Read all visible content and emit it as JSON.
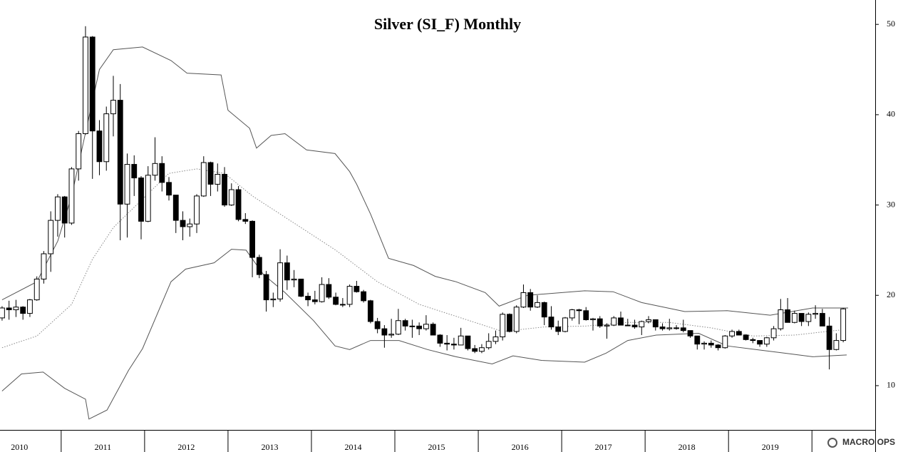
{
  "chart_data": {
    "type": "candlestick",
    "title": "Silver (SI_F) Monthly",
    "watermark": "MACRO OPS",
    "xlim": [
      -0.3,
      125.6
    ],
    "xticks": [
      8.5,
      20.5,
      32.5,
      44.5,
      56.5,
      68.5,
      80.5,
      92.5,
      104.5,
      116.5
    ],
    "year_labels": [
      {
        "value": 2.5,
        "label": "2010"
      },
      {
        "value": 14.5,
        "label": "2011"
      },
      {
        "value": 26.5,
        "label": "2012"
      },
      {
        "value": 38.5,
        "label": "2013"
      },
      {
        "value": 50.5,
        "label": "2014"
      },
      {
        "value": 62.5,
        "label": "2015"
      },
      {
        "value": 74.5,
        "label": "2016"
      },
      {
        "value": 86.5,
        "label": "2017"
      },
      {
        "value": 98.5,
        "label": "2018"
      },
      {
        "value": 110.5,
        "label": "2019"
      }
    ],
    "ylim": [
      5.1,
      52.7
    ],
    "yticks": [
      10,
      20,
      30,
      40,
      50
    ],
    "up_color": "#ffffff",
    "down_color": "#000000",
    "open": [
      17.5,
      18.6,
      18.4,
      18.7,
      18.0,
      19.5,
      21.8,
      24.6,
      28.3,
      30.9,
      28.0,
      34.0,
      37.9,
      48.6,
      38.2,
      34.8,
      40.1,
      41.6,
      30.1,
      34.5,
      33.0,
      28.2,
      33.3,
      34.6,
      32.5,
      31.1,
      28.3,
      27.6,
      27.9,
      31.0,
      34.7,
      32.3,
      33.4,
      30.0,
      31.7,
      28.4,
      28.2,
      24.2,
      22.3,
      19.5,
      19.6,
      23.6,
      21.7,
      21.8,
      19.9,
      19.5,
      19.3,
      21.2,
      19.8,
      19.0,
      19.0,
      21.0,
      20.4,
      19.4,
      17.1,
      16.3,
      15.6,
      15.7,
      17.2,
      16.6,
      16.6,
      16.3,
      16.8,
      15.6,
      14.7,
      14.6,
      14.5,
      15.5,
      14.1,
      13.8,
      14.2,
      14.9,
      15.4,
      17.9,
      16.0,
      18.7,
      20.3,
      18.7,
      19.2,
      17.6,
      16.5,
      16.0,
      17.5,
      18.4,
      18.3,
      17.3,
      17.4,
      16.6,
      16.7,
      17.5,
      16.7,
      16.7,
      16.5,
      17.1,
      17.3,
      16.5,
      16.3,
      16.4,
      16.4,
      16.1,
      15.5,
      14.6,
      14.7,
      14.5,
      14.2,
      15.5,
      16.0,
      15.6,
      15.1,
      15.0,
      14.6,
      15.3,
      16.3,
      18.4,
      17.0,
      18.0,
      17.1,
      17.9,
      18.0,
      16.6,
      14.0,
      15.0
    ],
    "high": [
      18.8,
      19.4,
      19.5,
      18.8,
      19.6,
      22.1,
      24.9,
      29.3,
      31.2,
      31.0,
      34.2,
      38.2,
      49.8,
      48.7,
      39.4,
      40.9,
      44.3,
      43.4,
      35.7,
      35.5,
      33.2,
      34.3,
      37.5,
      35.4,
      33.1,
      31.1,
      29.3,
      28.5,
      31.2,
      35.4,
      34.8,
      34.6,
      34.2,
      32.4,
      32.1,
      29.1,
      28.3,
      24.5,
      22.7,
      20.3,
      25.1,
      24.4,
      22.8,
      21.8,
      20.3,
      20.5,
      22.0,
      21.9,
      20.3,
      19.7,
      21.2,
      21.6,
      20.6,
      19.5,
      17.5,
      16.7,
      17.4,
      18.5,
      17.4,
      17.3,
      17.0,
      17.8,
      17.0,
      15.7,
      15.6,
      15.3,
      16.4,
      15.5,
      14.5,
      14.6,
      15.8,
      16.1,
      18.1,
      18.0,
      18.9,
      21.2,
      20.7,
      20.0,
      19.3,
      18.8,
      17.2,
      17.6,
      18.5,
      18.5,
      18.7,
      17.5,
      17.7,
      16.9,
      17.7,
      18.2,
      17.4,
      17.3,
      17.2,
      17.7,
      17.3,
      16.9,
      17.4,
      16.7,
      17.3,
      16.1,
      15.5,
      14.9,
      15.0,
      14.6,
      15.6,
      16.2,
      16.2,
      15.7,
      15.3,
      15.0,
      15.4,
      16.6,
      19.6,
      19.7,
      18.3,
      18.0,
      18.1,
      18.9,
      18.5,
      17.6,
      15.8,
      18.6
    ],
    "low": [
      17.2,
      17.3,
      17.6,
      17.3,
      17.6,
      19.4,
      21.3,
      22.6,
      26.5,
      26.4,
      27.8,
      32.7,
      37.8,
      32.9,
      33.3,
      33.8,
      37.6,
      26.1,
      26.4,
      31.0,
      26.2,
      28.1,
      32.7,
      31.5,
      30.5,
      26.9,
      26.1,
      26.5,
      26.9,
      30.9,
      31.0,
      31.5,
      29.8,
      29.9,
      28.2,
      27.9,
      22.0,
      21.9,
      18.2,
      18.7,
      19.3,
      20.6,
      20.9,
      19.8,
      18.8,
      19.0,
      19.2,
      19.6,
      18.9,
      18.7,
      18.7,
      20.3,
      19.2,
      16.9,
      15.8,
      14.2,
      15.3,
      15.6,
      16.1,
      15.3,
      15.6,
      16.1,
      15.6,
      14.3,
      13.9,
      14.0,
      14.5,
      13.9,
      13.6,
      13.6,
      14.0,
      14.6,
      15.0,
      15.9,
      15.8,
      18.6,
      18.3,
      18.6,
      16.7,
      16.2,
      15.6,
      15.9,
      17.2,
      16.8,
      17.2,
      16.1,
      16.4,
      15.2,
      16.6,
      16.7,
      16.6,
      16.3,
      15.6,
      16.9,
      16.1,
      16.1,
      16.1,
      16.2,
      15.9,
      15.3,
      14.0,
      14.0,
      14.2,
      13.9,
      14.1,
      15.3,
      15.6,
      15.0,
      14.7,
      14.3,
      14.3,
      15.0,
      16.1,
      17.0,
      16.9,
      16.6,
      16.6,
      17.4,
      16.6,
      11.8,
      13.9,
      14.8
    ],
    "close": [
      18.6,
      18.4,
      18.7,
      18.0,
      19.5,
      21.8,
      24.6,
      28.3,
      30.9,
      28.0,
      34.0,
      37.9,
      48.6,
      38.2,
      34.8,
      40.1,
      41.6,
      30.1,
      34.5,
      33.0,
      28.2,
      33.3,
      34.6,
      32.5,
      31.1,
      28.3,
      27.6,
      27.9,
      31.0,
      34.7,
      32.3,
      33.4,
      30.0,
      31.7,
      28.4,
      28.2,
      24.2,
      22.3,
      19.5,
      19.6,
      23.6,
      21.7,
      21.8,
      19.9,
      19.5,
      19.3,
      21.2,
      19.8,
      19.0,
      19.0,
      21.0,
      20.4,
      19.4,
      17.1,
      16.3,
      15.6,
      15.7,
      17.2,
      16.6,
      16.6,
      16.3,
      16.8,
      15.6,
      14.7,
      14.6,
      14.5,
      15.5,
      14.1,
      13.8,
      14.2,
      14.9,
      15.4,
      17.9,
      16.0,
      18.7,
      20.3,
      18.7,
      19.2,
      17.6,
      16.5,
      16.0,
      17.5,
      18.4,
      18.3,
      17.3,
      17.4,
      16.6,
      16.7,
      17.5,
      16.7,
      16.7,
      16.5,
      17.1,
      17.3,
      16.5,
      16.3,
      16.4,
      16.4,
      16.1,
      15.5,
      14.6,
      14.7,
      14.5,
      14.2,
      15.5,
      16.0,
      15.6,
      15.1,
      15.0,
      14.6,
      15.3,
      16.3,
      18.4,
      17.0,
      18.0,
      17.1,
      17.9,
      18.0,
      16.6,
      14.0,
      15.0,
      18.5
    ],
    "bands": [
      {
        "color": "#555555",
        "line_style": "solid",
        "x": [
          0,
          5,
          8,
          10,
          12,
          14,
          16,
          20.2,
          24.3,
          26.6,
          31.5,
          32.5,
          35.6,
          36.6,
          38.7,
          40.7,
          43.8,
          47.9,
          50,
          51,
          53,
          55.6,
          59.2,
          62.3,
          65.3,
          69.5,
          71.5,
          75.6,
          83.8,
          87.9,
          92,
          98.2,
          104.3,
          110.5,
          116.6,
          121.7
        ],
        "values": [
          19.5,
          21.5,
          26,
          31,
          38,
          45,
          47.2,
          47.5,
          46,
          44.6,
          44.4,
          40.5,
          38.5,
          36.3,
          37.7,
          37.9,
          36.1,
          35.7,
          33.7,
          32.3,
          29,
          24.1,
          23.3,
          22.1,
          21.5,
          20.3,
          18.8,
          20,
          20.5,
          20.4,
          19.2,
          18.2,
          18.3,
          17.8,
          18.6,
          18.6
        ]
      },
      {
        "color": "#888888",
        "line_style": "dotted",
        "x": [
          0,
          5,
          10,
          13,
          16,
          20,
          24,
          28,
          32,
          36,
          42,
          48,
          54,
          60,
          66,
          72,
          78,
          84,
          90,
          96,
          102,
          108,
          114,
          121
        ],
        "values": [
          14.2,
          15.5,
          19,
          24,
          27.5,
          30.5,
          33.5,
          34,
          33.5,
          31,
          28,
          25,
          21.5,
          19,
          17.5,
          16,
          16.5,
          16.6,
          17,
          17,
          16.4,
          15.5,
          15.6,
          16.2
        ]
      },
      {
        "color": "#555555",
        "line_style": "solid",
        "x": [
          0,
          2.8,
          5.9,
          9,
          12,
          12.5,
          15.1,
          18.2,
          20.2,
          24.3,
          26.4,
          30.5,
          33,
          35.1,
          37.6,
          40.7,
          44.8,
          47.9,
          50,
          53,
          57.1,
          61.2,
          65.3,
          70.5,
          73.5,
          77.6,
          83.8,
          86.9,
          90,
          94.1,
          100.2,
          104.3,
          108.4,
          112.5,
          116.6,
          121.5
        ],
        "values": [
          9.4,
          11.3,
          11.5,
          9.7,
          8.5,
          6.3,
          7.3,
          11.7,
          14.1,
          21.5,
          22.9,
          23.6,
          25.1,
          25,
          22.3,
          20.3,
          17.2,
          14.4,
          14,
          15,
          15,
          14,
          13.2,
          12.4,
          13.3,
          12.8,
          12.6,
          13.6,
          15,
          15.6,
          15.8,
          14.4,
          14,
          13.6,
          13.2,
          13.4
        ]
      }
    ]
  }
}
